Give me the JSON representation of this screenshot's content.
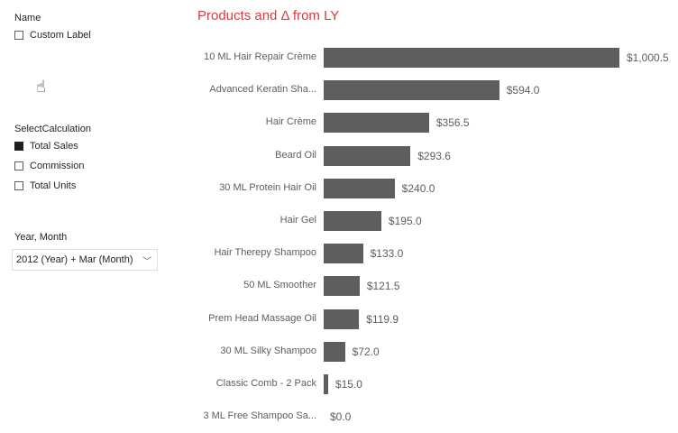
{
  "slicers": {
    "name": {
      "title": "Name",
      "options": [
        {
          "label": "Custom Label",
          "checked": false
        }
      ]
    },
    "calc": {
      "title": "SelectCalculation",
      "options": [
        {
          "label": "Total Sales",
          "checked": true
        },
        {
          "label": "Commission",
          "checked": false
        },
        {
          "label": "Total Units",
          "checked": false
        }
      ]
    },
    "date": {
      "title": "Year, Month",
      "value": "2012 (Year) + Mar (Month)"
    }
  },
  "chart_data": {
    "type": "bar",
    "orientation": "horizontal",
    "title": "Products and Δ from LY",
    "title_color": "#e0393e",
    "bar_color": "#605e5c",
    "categories": [
      "10 ML Hair Repair Crème",
      "Advanced Keratin Sha...",
      "Hair Crème",
      "Beard Oil",
      "30 ML Protein Hair Oil",
      "Hair Gel",
      "Hair Therepy Shampoo",
      "50 ML Smoother",
      "Prem Head Massage Oil",
      "30 ML Silky Shampoo",
      "Classic Comb - 2 Pack",
      "3 ML Free Shampoo Sa..."
    ],
    "values": [
      1000.5,
      594.0,
      356.5,
      293.6,
      240.0,
      195.0,
      133.0,
      121.5,
      119.9,
      72.0,
      15.0,
      0.0
    ],
    "data_labels": [
      "$1,000.5",
      "$594.0",
      "$356.5",
      "$293.6",
      "$240.0",
      "$195.0",
      "$133.0",
      "$121.5",
      "$119.9",
      "$72.0",
      "$15.0",
      "$0.0"
    ]
  }
}
